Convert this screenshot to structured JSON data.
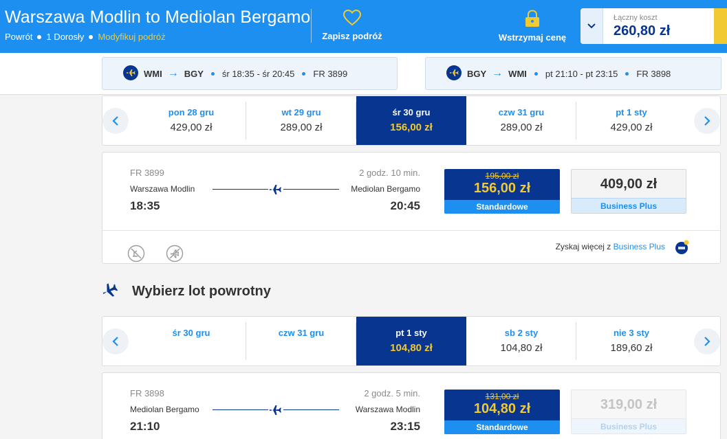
{
  "header": {
    "title": "Warszawa Modlin to Mediolan Bergamo",
    "trip_type": "Powrót",
    "passengers": "1 Dorosły",
    "modify_label": "Modyfikuj podróż",
    "save_trip_label": "Zapisz podróż",
    "hold_price_label": "Wstrzymaj cenę",
    "total_label": "Łączny koszt",
    "total_value": "260,80 zł"
  },
  "summary": {
    "outbound": {
      "from": "WMI",
      "to": "BGY",
      "times": "śr 18:35 - śr 20:45",
      "flight": "FR 3899"
    },
    "return": {
      "from": "BGY",
      "to": "WMI",
      "times": "pt 21:10 - pt 23:15",
      "flight": "FR 3898"
    }
  },
  "outbound_dates": [
    {
      "label": "pon 28 gru",
      "price": "429,00 zł"
    },
    {
      "label": "wt 29 gru",
      "price": "289,00 zł"
    },
    {
      "label": "śr 30 gru",
      "price": "156,00 zł"
    },
    {
      "label": "czw 31 gru",
      "price": "289,00 zł"
    },
    {
      "label": "pt 1 sty",
      "price": "429,00 zł"
    }
  ],
  "outbound_flight": {
    "number": "FR 3899",
    "duration": "2 godz. 10 min.",
    "from": "Warszawa Modlin",
    "to": "Mediolan Bergamo",
    "dep": "18:35",
    "arr": "20:45",
    "std_old": "195,00 zł",
    "std_new": "156,00 zł",
    "std_label": "Standardowe",
    "biz_price": "409,00 zł",
    "biz_label": "Business Plus",
    "upsell_text": "Zyskaj więcej z",
    "upsell_link": "Business Plus"
  },
  "return_heading": "Wybierz lot powrotny",
  "return_dates": [
    {
      "label": "śr 30 gru",
      "price": ""
    },
    {
      "label": "czw 31 gru",
      "price": ""
    },
    {
      "label": "pt 1 sty",
      "price": "104,80 zł"
    },
    {
      "label": "sb 2 sty",
      "price": "104,80 zł"
    },
    {
      "label": "nie 3 sty",
      "price": "189,60 zł"
    }
  ],
  "return_flight": {
    "number": "FR 3898",
    "duration": "2 godz. 5 min.",
    "from": "Mediolan Bergamo",
    "to": "Warszawa Modlin",
    "dep": "21:10",
    "arr": "23:15",
    "std_old": "131,00 zł",
    "std_new": "104,80 zł",
    "std_label": "Standardowe",
    "biz_price": "319,00 zł",
    "biz_label": "Business Plus"
  },
  "colors": {
    "brand_blue": "#1d8ff0",
    "dark_blue": "#073590",
    "yellow": "#f1c933"
  },
  "icons": [
    "heart-icon",
    "lock-icon",
    "chevron-down-icon",
    "plane-icon",
    "chevron-left-icon",
    "chevron-right-icon",
    "no-checkin-bag-icon",
    "no-priority-icon",
    "business-plus-badge-icon"
  ]
}
